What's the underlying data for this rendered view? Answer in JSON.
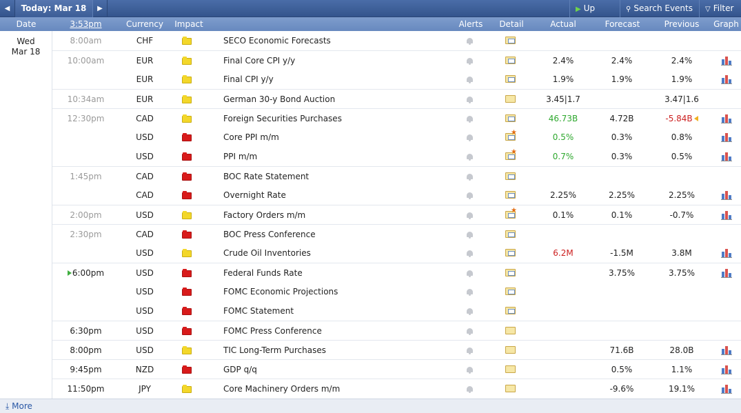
{
  "toolbar": {
    "prev_icon": "◀",
    "next_icon": "▶",
    "today_label": "Today: Mar 18",
    "up_next_label": "Up Next",
    "search_label": "Search Events",
    "filter_label": "Filter",
    "accent_color": "#3d5e97"
  },
  "columns": {
    "date": "Date",
    "time": "3:53pm",
    "currency": "Currency",
    "impact": "Impact",
    "alerts": "Alerts",
    "detail": "Detail",
    "actual": "Actual",
    "forecast": "Forecast",
    "previous": "Previous",
    "graph": "Graph"
  },
  "day": {
    "weekday": "Wed",
    "date": "Mar 18"
  },
  "events": [
    {
      "time": "8:00am",
      "currency": "CHF",
      "impact": "yellow",
      "event": "SECO Economic Forecasts",
      "detail": "view",
      "actual": "",
      "forecast": "",
      "previous": "",
      "graph": false
    },
    {
      "time": "10:00am",
      "currency": "EUR",
      "impact": "yellow",
      "event": "Final Core CPI y/y",
      "detail": "view",
      "actual": "2.4%",
      "forecast": "2.4%",
      "previous": "2.4%",
      "graph": true
    },
    {
      "time": "",
      "currency": "EUR",
      "impact": "yellow",
      "event": "Final CPI y/y",
      "detail": "view",
      "actual": "1.9%",
      "forecast": "1.9%",
      "previous": "1.9%",
      "graph": true
    },
    {
      "time": "10:34am",
      "currency": "EUR",
      "impact": "yellow",
      "event": "German 30-y Bond Auction",
      "detail": "plain",
      "actual": "3.45|1.7",
      "forecast": "",
      "previous": "3.47|1.6",
      "graph": false
    },
    {
      "time": "12:30pm",
      "currency": "CAD",
      "impact": "yellow",
      "event": "Foreign Securities Purchases",
      "detail": "view",
      "actual": "46.73B",
      "actual_tone": "pos",
      "forecast": "4.72B",
      "previous": "-5.84B",
      "previous_tone": "neg",
      "previous_revised": true,
      "graph": true
    },
    {
      "time": "",
      "currency": "USD",
      "impact": "red",
      "event": "Core PPI m/m",
      "detail": "star",
      "actual": "0.5%",
      "actual_tone": "pos",
      "forecast": "0.3%",
      "previous": "0.8%",
      "graph": true
    },
    {
      "time": "",
      "currency": "USD",
      "impact": "red",
      "event": "PPI m/m",
      "detail": "star",
      "actual": "0.7%",
      "actual_tone": "pos",
      "forecast": "0.3%",
      "previous": "0.5%",
      "graph": true
    },
    {
      "time": "1:45pm",
      "currency": "CAD",
      "impact": "red",
      "event": "BOC Rate Statement",
      "detail": "view",
      "actual": "",
      "forecast": "",
      "previous": "",
      "graph": false
    },
    {
      "time": "",
      "currency": "CAD",
      "impact": "red",
      "event": "Overnight Rate",
      "detail": "view",
      "actual": "2.25%",
      "forecast": "2.25%",
      "previous": "2.25%",
      "graph": true
    },
    {
      "time": "2:00pm",
      "currency": "USD",
      "impact": "yellow",
      "event": "Factory Orders m/m",
      "detail": "star",
      "actual": "0.1%",
      "forecast": "0.1%",
      "previous": "-0.7%",
      "graph": true
    },
    {
      "time": "2:30pm",
      "currency": "CAD",
      "impact": "red",
      "event": "BOC Press Conference",
      "detail": "view",
      "actual": "",
      "forecast": "",
      "previous": "",
      "graph": false
    },
    {
      "time": "",
      "currency": "USD",
      "impact": "yellow",
      "event": "Crude Oil Inventories",
      "detail": "view",
      "actual": "6.2M",
      "actual_tone": "neg",
      "forecast": "-1.5M",
      "previous": "3.8M",
      "graph": true
    },
    {
      "time": "6:00pm",
      "time_marker": true,
      "currency": "USD",
      "impact": "red",
      "event": "Federal Funds Rate",
      "detail": "view",
      "actual": "",
      "forecast": "3.75%",
      "previous": "3.75%",
      "graph": true
    },
    {
      "time": "",
      "currency": "USD",
      "impact": "red",
      "event": "FOMC Economic Projections",
      "detail": "view",
      "actual": "",
      "forecast": "",
      "previous": "",
      "graph": false
    },
    {
      "time": "",
      "currency": "USD",
      "impact": "red",
      "event": "FOMC Statement",
      "detail": "view",
      "actual": "",
      "forecast": "",
      "previous": "",
      "graph": false
    },
    {
      "time": "6:30pm",
      "currency": "USD",
      "impact": "red",
      "event": "FOMC Press Conference",
      "detail": "plain",
      "actual": "",
      "forecast": "",
      "previous": "",
      "graph": false
    },
    {
      "time": "8:00pm",
      "currency": "USD",
      "impact": "yellow",
      "event": "TIC Long-Term Purchases",
      "detail": "plain",
      "actual": "",
      "forecast": "71.6B",
      "previous": "28.0B",
      "graph": true
    },
    {
      "time": "9:45pm",
      "currency": "NZD",
      "impact": "red",
      "event": "GDP q/q",
      "detail": "plain",
      "actual": "",
      "forecast": "0.5%",
      "previous": "1.1%",
      "graph": true
    },
    {
      "time": "11:50pm",
      "currency": "JPY",
      "impact": "yellow",
      "event": "Core Machinery Orders m/m",
      "detail": "plain",
      "actual": "",
      "forecast": "-9.6%",
      "previous": "19.1%",
      "graph": true
    }
  ],
  "footer": {
    "more_label": "More",
    "more_icon": "⤓"
  }
}
